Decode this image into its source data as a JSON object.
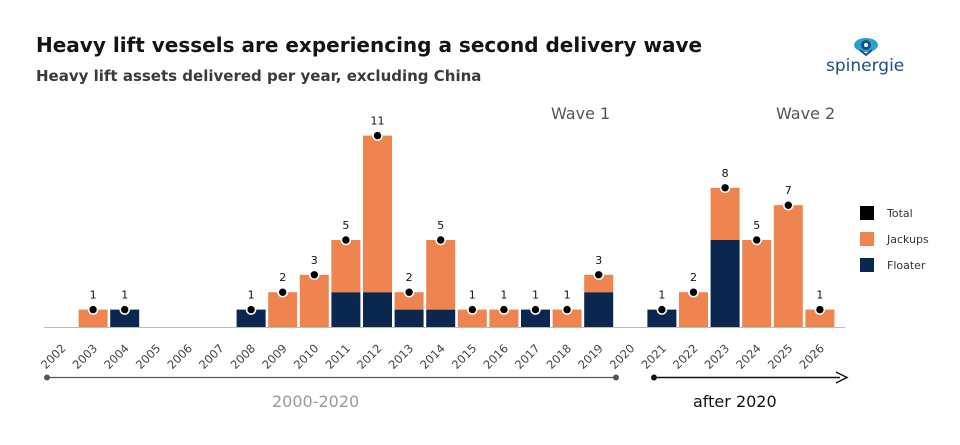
{
  "header": {
    "title": "Heavy lift vessels are experiencing a second delivery wave",
    "subtitle": "Heavy lift assets delivered per year, excluding China",
    "brand": "spinergie"
  },
  "colors": {
    "floater": "#0b2750",
    "jackups": "#ee8450",
    "total": "#000000",
    "axis": "#bbbbbb",
    "brand": "#1b4e86"
  },
  "periods": {
    "wave1": "Wave 1",
    "wave2": "Wave 2",
    "range1": "2000-2020",
    "range2": "after 2020"
  },
  "chart_data": {
    "type": "bar",
    "stacked": true,
    "categories": [
      "2002",
      "2003",
      "2004",
      "2005",
      "2006",
      "2007",
      "2008",
      "2009",
      "2010",
      "2011",
      "2012",
      "2013",
      "2014",
      "2015",
      "2016",
      "2017",
      "2018",
      "2019",
      "2020",
      "2021",
      "2022",
      "2023",
      "2024",
      "2025",
      "2026"
    ],
    "series": [
      {
        "name": "Floater",
        "values": [
          0,
          0,
          1,
          0,
          0,
          0,
          1,
          0,
          0,
          2,
          2,
          1,
          1,
          0,
          0,
          1,
          0,
          2,
          0,
          1,
          0,
          5,
          0,
          0,
          0
        ]
      },
      {
        "name": "Jackups",
        "values": [
          0,
          1,
          0,
          0,
          0,
          0,
          0,
          2,
          3,
          3,
          9,
          1,
          4,
          1,
          1,
          0,
          1,
          1,
          0,
          0,
          2,
          3,
          5,
          7,
          1
        ]
      }
    ],
    "totals": [
      0,
      1,
      1,
      0,
      0,
      0,
      1,
      2,
      3,
      5,
      11,
      2,
      5,
      1,
      1,
      1,
      1,
      3,
      0,
      1,
      2,
      8,
      5,
      7,
      1
    ],
    "legend": [
      "Total",
      "Jackups",
      "Floater"
    ],
    "legend_position": "right",
    "grid": false
  }
}
